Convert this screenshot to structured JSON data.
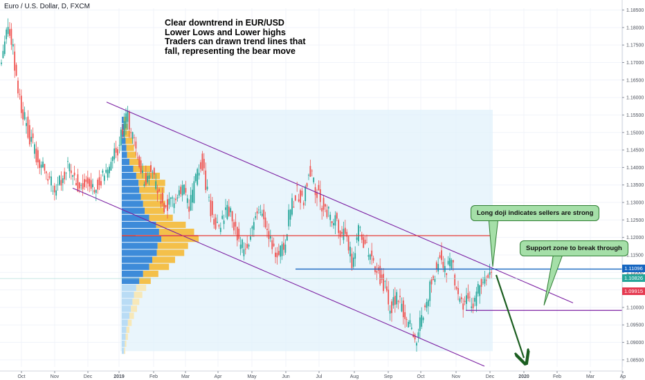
{
  "title": "Euro / U.S. Dollar, D, FXCM",
  "annotation": {
    "lines": [
      "Clear downtrend in EUR/USD",
      "Lower Lows and Lower highs",
      "Traders can drawn trend lines that",
      "fall, representing the bear move"
    ]
  },
  "callouts": {
    "doji": "Long doji indicates sellers are strong",
    "support": "Support zone to break through"
  },
  "price_tags": {
    "blue": "1.11096",
    "green": "1.10826",
    "red": "1.09915"
  },
  "colors": {
    "up": "#26a69a",
    "down": "#ef5350",
    "channel": "#7b1fa2",
    "resistance_red": "#e53935",
    "level_blue": "#1565c0",
    "support_purple": "#7b1fa2",
    "arrow": "#1b5e20",
    "vp_up": "#f4c04a",
    "vp_down": "#3d8bd9",
    "box": "#e1f2fb"
  },
  "chart_data": {
    "type": "candlestick",
    "symbol": "Euro / U.S. Dollar, D, FXCM",
    "ylim": [
      1.083,
      1.1855
    ],
    "y_ticks": [
      "1.18500",
      "1.18000",
      "1.17500",
      "1.17000",
      "1.16500",
      "1.16000",
      "1.15500",
      "1.15000",
      "1.14500",
      "1.14000",
      "1.13500",
      "1.13000",
      "1.12500",
      "1.12000",
      "1.11500",
      "1.11000",
      "1.10500",
      "1.10000",
      "1.09500",
      "1.09000",
      "1.08500"
    ],
    "x_ticks": [
      "Oct",
      "Nov",
      "Dec",
      "2019",
      "Feb",
      "Mar",
      "Apr",
      "May",
      "Jun",
      "Jul",
      "Aug",
      "Sep",
      "Oct",
      "Nov",
      "Dec",
      "2020",
      "Feb",
      "Mar",
      "Ap"
    ],
    "price_path": [
      [
        0,
        1.168
      ],
      [
        8,
        1.176
      ],
      [
        15,
        1.181
      ],
      [
        22,
        1.172
      ],
      [
        30,
        1.16
      ],
      [
        42,
        1.151
      ],
      [
        55,
        1.143
      ],
      [
        66,
        1.139
      ],
      [
        80,
        1.134
      ],
      [
        92,
        1.137
      ],
      [
        100,
        1.14
      ],
      [
        115,
        1.135
      ],
      [
        128,
        1.136
      ],
      [
        140,
        1.135
      ],
      [
        155,
        1.138
      ],
      [
        165,
        1.142
      ],
      [
        175,
        1.147
      ],
      [
        185,
        1.155
      ],
      [
        192,
        1.15
      ],
      [
        200,
        1.143
      ],
      [
        210,
        1.136
      ],
      [
        220,
        1.14
      ],
      [
        232,
        1.131
      ],
      [
        245,
        1.128
      ],
      [
        258,
        1.132
      ],
      [
        268,
        1.134
      ],
      [
        276,
        1.128
      ],
      [
        285,
        1.136
      ],
      [
        293,
        1.142
      ],
      [
        302,
        1.132
      ],
      [
        312,
        1.124
      ],
      [
        322,
        1.124
      ],
      [
        333,
        1.128
      ],
      [
        343,
        1.121
      ],
      [
        355,
        1.116
      ],
      [
        368,
        1.124
      ],
      [
        380,
        1.128
      ],
      [
        392,
        1.121
      ],
      [
        402,
        1.115
      ],
      [
        412,
        1.117
      ],
      [
        420,
        1.126
      ],
      [
        430,
        1.133
      ],
      [
        440,
        1.13
      ],
      [
        450,
        1.14
      ],
      [
        458,
        1.134
      ],
      [
        468,
        1.129
      ],
      [
        478,
        1.126
      ],
      [
        490,
        1.124
      ],
      [
        500,
        1.12
      ],
      [
        512,
        1.113
      ],
      [
        520,
        1.124
      ],
      [
        528,
        1.118
      ],
      [
        538,
        1.114
      ],
      [
        548,
        1.11
      ],
      [
        558,
        1.106
      ],
      [
        565,
        1.099
      ],
      [
        575,
        1.103
      ],
      [
        585,
        1.099
      ],
      [
        595,
        1.094
      ],
      [
        603,
        1.09
      ],
      [
        612,
        1.098
      ],
      [
        620,
        1.103
      ],
      [
        630,
        1.11
      ],
      [
        637,
        1.115
      ],
      [
        645,
        1.11
      ],
      [
        655,
        1.113
      ],
      [
        662,
        1.105
      ],
      [
        670,
        1.101
      ],
      [
        678,
        1.103
      ],
      [
        688,
        1.101
      ],
      [
        696,
        1.106
      ],
      [
        705,
        1.108
      ],
      [
        712,
        1.109
      ]
    ],
    "trendlines": {
      "channel_upper": {
        "from": [
          "2018-12-20",
          1.158
        ],
        "to": [
          "2020-01-25",
          1.101
        ]
      },
      "channel_lower": {
        "from": [
          "2018-11-25",
          1.134
        ],
        "to": [
          "2019-12-10",
          1.083
        ]
      },
      "resistance": {
        "value": 1.1205,
        "from": "2019-02",
        "to": "2019-12"
      },
      "level": {
        "value": 1.11096,
        "from": "2019-07",
        "to": "2020-04"
      },
      "support": {
        "value": 1.09915,
        "from": "2019-11",
        "to": "2020-04"
      }
    },
    "volume_profile_levels": [
      {
        "price": 1.1545,
        "up": 8,
        "down": 5
      },
      {
        "price": 1.1525,
        "up": 10,
        "down": 6
      },
      {
        "price": 1.1505,
        "up": 14,
        "down": 8
      },
      {
        "price": 1.1485,
        "up": 18,
        "down": 10
      },
      {
        "price": 1.1465,
        "up": 20,
        "down": 12
      },
      {
        "price": 1.1445,
        "up": 24,
        "down": 14
      },
      {
        "price": 1.1425,
        "up": 28,
        "down": 20
      },
      {
        "price": 1.1405,
        "up": 48,
        "down": 30
      },
      {
        "price": 1.1385,
        "up": 62,
        "down": 38
      },
      {
        "price": 1.1365,
        "up": 70,
        "down": 44
      },
      {
        "price": 1.1345,
        "up": 66,
        "down": 46
      },
      {
        "price": 1.1325,
        "up": 60,
        "down": 50
      },
      {
        "price": 1.1305,
        "up": 58,
        "down": 56
      },
      {
        "price": 1.1285,
        "up": 52,
        "down": 60
      },
      {
        "price": 1.1265,
        "up": 62,
        "down": 72
      },
      {
        "price": 1.1245,
        "up": 78,
        "down": 90
      },
      {
        "price": 1.1225,
        "up": 92,
        "down": 98
      },
      {
        "price": 1.1205,
        "up": 98,
        "down": 104
      },
      {
        "price": 1.1185,
        "up": 80,
        "down": 94
      },
      {
        "price": 1.1165,
        "up": 72,
        "down": 92
      },
      {
        "price": 1.1145,
        "up": 60,
        "down": 80
      },
      {
        "price": 1.1125,
        "up": 52,
        "down": 72
      },
      {
        "price": 1.1105,
        "up": 40,
        "down": 56
      },
      {
        "price": 1.1085,
        "up": 30,
        "down": 46
      },
      {
        "price": 1.1065,
        "up": 26,
        "down": 38
      },
      {
        "price": 1.1045,
        "up": 22,
        "down": 32
      },
      {
        "price": 1.1025,
        "up": 18,
        "down": 28
      },
      {
        "price": 1.1005,
        "up": 16,
        "down": 24
      },
      {
        "price": 1.0985,
        "up": 12,
        "down": 20
      },
      {
        "price": 1.0965,
        "up": 10,
        "down": 16
      },
      {
        "price": 1.0945,
        "up": 8,
        "down": 12
      },
      {
        "price": 1.0925,
        "up": 6,
        "down": 10
      },
      {
        "price": 1.0905,
        "up": 4,
        "down": 8
      },
      {
        "price": 1.0885,
        "up": 3,
        "down": 6
      }
    ]
  }
}
